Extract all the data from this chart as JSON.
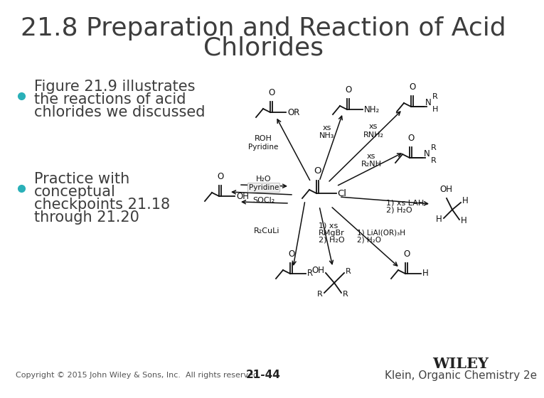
{
  "title_line1": "21.8 Preparation and Reaction of Acid",
  "title_line2": "Chlorides",
  "title_fontsize": 26,
  "title_color": "#3d3d3d",
  "bullet_color": "#2ab0b8",
  "bullet_text_color": "#3d3d3d",
  "bullet_fontsize": 15,
  "footer_copyright": "Copyright © 2015 John Wiley & Sons, Inc.  All rights reserved.",
  "footer_page": "21-44",
  "footer_publisher": "WILEY",
  "footer_book": "Klein, Organic Chemistry 2e",
  "bg_color": "#ffffff",
  "footer_fontsize": 8,
  "wiley_fontsize": 15,
  "klein_fontsize": 11,
  "chem_color": "#111111"
}
